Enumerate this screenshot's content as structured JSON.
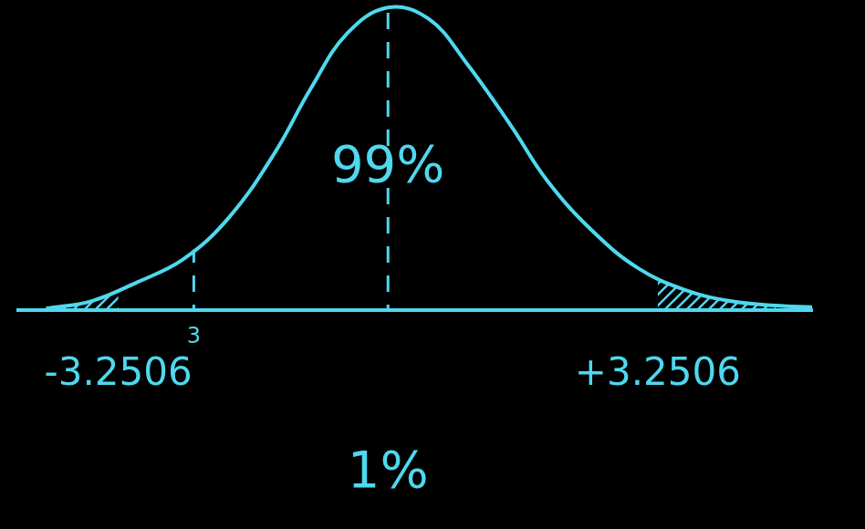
{
  "chart_data": {
    "type": "line",
    "x": [
      -4.12,
      -3.57,
      -3.02,
      -2.47,
      -1.92,
      -1.37,
      -0.93,
      -0.49,
      0,
      0.49,
      0.93,
      1.48,
      1.92,
      2.47,
      3.02,
      3.57,
      4.12,
      4.67,
      5.11
    ],
    "values": [
      0.002,
      0.012,
      0.037,
      0.067,
      0.122,
      0.207,
      0.293,
      0.366,
      0.4,
      0.385,
      0.329,
      0.244,
      0.171,
      0.104,
      0.055,
      0.027,
      0.012,
      0.006,
      0.004
    ],
    "color": "#4fd8ee",
    "xlim": [
      -4.45,
      5.11
    ],
    "ylim": [
      0,
      0.41
    ],
    "xticks": [
      -3.2506,
      {
        "value": 3.2506,
        "label": "+3.2506"
      }
    ],
    "tick_labels": "x",
    "grid": false,
    "shaded": [
      {
        "from": -4.12,
        "to": -3.2506
      },
      {
        "from": 3.2506,
        "to": 4.67
      }
    ],
    "reference_lines": [
      {
        "x": 0,
        "line_style": "dashed"
      },
      {
        "x": -2.34,
        "line_style": "dashed"
      }
    ],
    "annotations": [
      {
        "text": "99%",
        "x": 0,
        "y": 0.187
      },
      {
        "text": "3",
        "x": -2.34,
        "y": -0.036
      },
      {
        "text": "1%",
        "x": 0,
        "y": -0.217
      }
    ]
  }
}
